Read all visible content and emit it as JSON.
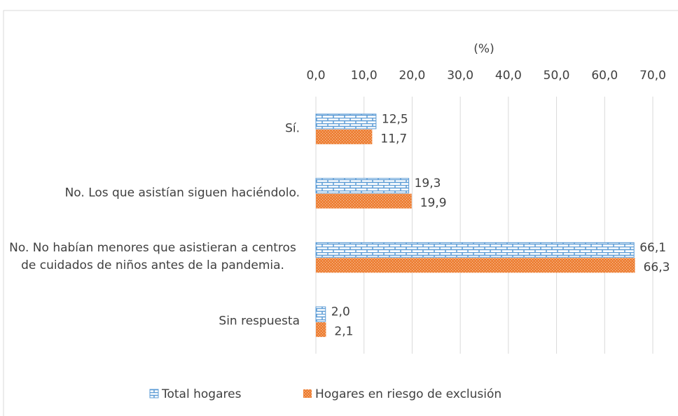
{
  "chart_data": {
    "type": "bar",
    "orientation": "horizontal",
    "title": "(%)",
    "categories": [
      "Sí.",
      "No. Los que asistían siguen haciéndolo.",
      "No. No habían menores que asistieran a centros de cuidados de niños antes de la pandemia.",
      "Sin respuesta"
    ],
    "series": [
      {
        "name": "Total hogares",
        "color": "#5b9bd5",
        "values": [
          12.5,
          19.3,
          66.1,
          2.0
        ],
        "value_labels": [
          "12,5",
          "19,3",
          "66,1",
          "2,0"
        ]
      },
      {
        "name": "Hogares en riesgo de exclusión",
        "color": "#ed7d31",
        "values": [
          11.7,
          19.9,
          66.3,
          2.1
        ],
        "value_labels": [
          "11,7",
          "19,9",
          "66,3",
          "2,1"
        ]
      }
    ],
    "xlim": [
      0,
      70
    ],
    "xticks": [
      {
        "value": 0,
        "label": "0,0"
      },
      {
        "value": 10,
        "label": "10,0"
      },
      {
        "value": 20,
        "label": "20,0"
      },
      {
        "value": 30,
        "label": "30,0"
      },
      {
        "value": 40,
        "label": "40,0"
      },
      {
        "value": 50,
        "label": "50,0"
      },
      {
        "value": 60,
        "label": "60,0"
      },
      {
        "value": 70,
        "label": "70,0"
      }
    ],
    "grid": true,
    "legend": "bottom"
  }
}
